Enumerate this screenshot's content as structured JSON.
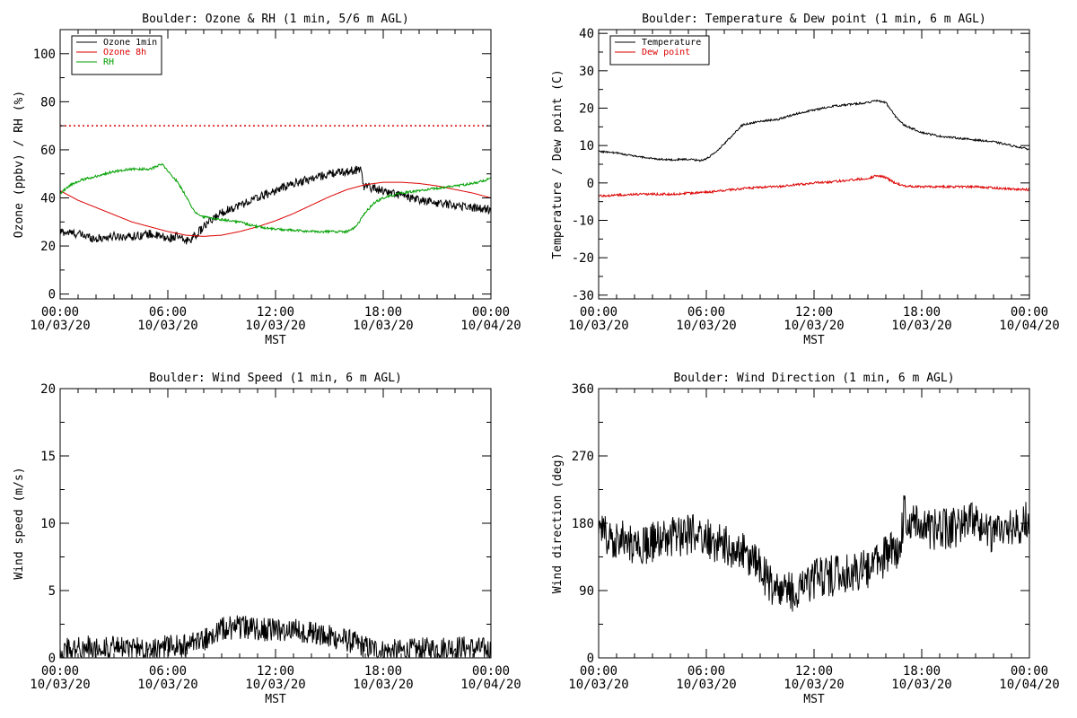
{
  "colors": {
    "black": "#000000",
    "red": "#dd0000",
    "green": "#00a000"
  },
  "x_axis": {
    "tick_times": [
      "00:00",
      "06:00",
      "12:00",
      "18:00",
      "00:00"
    ],
    "tick_dates": [
      "10/03/20",
      "10/03/20",
      "10/03/20",
      "10/03/20",
      "10/04/20"
    ],
    "xlabel": "MST",
    "range_hours": [
      0,
      24
    ]
  },
  "chart_data": [
    {
      "type": "line",
      "title": "Boulder: Ozone & RH (1 min, 5/6 m AGL)",
      "ylabel": "Ozone (ppbv) / RH (%)",
      "ylim": [
        -2,
        110
      ],
      "yticks": [
        0,
        20,
        40,
        60,
        80,
        100
      ],
      "reference_line": {
        "y": 70,
        "style": "dotted",
        "color": "#dd0000"
      },
      "legend_position": "top-left",
      "series": [
        {
          "name": "Ozone 1min",
          "color": "#000000",
          "noise": 1.8,
          "x": [
            0,
            1,
            2,
            3,
            4,
            5,
            6,
            6.5,
            7,
            7.5,
            8,
            8.5,
            9,
            10,
            11,
            12,
            13,
            14,
            15,
            16,
            16.8,
            16.9,
            17.5,
            18,
            19,
            20,
            21,
            22,
            23,
            24
          ],
          "y": [
            26,
            25,
            23,
            24,
            24,
            25,
            23,
            24,
            22,
            24,
            28,
            31,
            34,
            37,
            40,
            43,
            46,
            48,
            50,
            51,
            52,
            45,
            44,
            43,
            41,
            39,
            38,
            37,
            36,
            35
          ]
        },
        {
          "name": "Ozone 8h",
          "color": "#dd0000",
          "noise": 0,
          "x": [
            0,
            1,
            2,
            3,
            4,
            5,
            6,
            7,
            8,
            9,
            10,
            11,
            12,
            13,
            14,
            15,
            16,
            17,
            18,
            19,
            20,
            21,
            22,
            23,
            24
          ],
          "y": [
            43,
            39,
            36,
            33,
            30,
            28,
            26,
            24.5,
            24,
            24.5,
            26,
            28,
            30.5,
            33.5,
            37,
            40.5,
            43.5,
            45.5,
            46.5,
            46.5,
            46,
            45,
            43.5,
            42,
            40
          ]
        },
        {
          "name": "RH",
          "color": "#00a000",
          "noise": 0.5,
          "x": [
            0,
            0.5,
            1,
            2,
            3,
            4,
            5,
            5.7,
            6,
            6.5,
            7,
            7.5,
            8,
            9,
            10,
            11,
            12,
            13,
            14,
            15,
            16,
            16.5,
            17,
            17.5,
            18,
            19,
            20,
            21,
            22,
            23,
            24
          ],
          "y": [
            42,
            45,
            47,
            49,
            51,
            52,
            52,
            54,
            51,
            47,
            41,
            34,
            32,
            31,
            30,
            28,
            27,
            26.5,
            26,
            26,
            26,
            28,
            34,
            38,
            40,
            42,
            43,
            44,
            45,
            46,
            48
          ]
        }
      ]
    },
    {
      "type": "line",
      "title": "Boulder: Temperature & Dew point (1 min, 6 m AGL)",
      "ylabel": "Temperature / Dew point (C)",
      "ylim": [
        -31,
        41
      ],
      "yticks": [
        -30,
        -20,
        -10,
        0,
        10,
        20,
        30,
        40
      ],
      "legend_position": "top-left",
      "series": [
        {
          "name": "Temperature",
          "color": "#000000",
          "noise": 0.25,
          "x": [
            0,
            1,
            2,
            3,
            4,
            5,
            5.7,
            6,
            6.5,
            7,
            7.5,
            8,
            9,
            10,
            11,
            12,
            13,
            14,
            15,
            15.5,
            16,
            16.5,
            17,
            18,
            19,
            20,
            21,
            22,
            23,
            24
          ],
          "y": [
            8.5,
            8,
            7.2,
            6.5,
            6.2,
            6.3,
            6,
            6.5,
            8,
            10.5,
            13,
            15.5,
            16.5,
            17,
            18.5,
            19.5,
            20.5,
            21,
            21.5,
            22,
            21.5,
            18,
            15.5,
            13.5,
            12.5,
            12,
            11.5,
            11,
            10,
            9
          ]
        },
        {
          "name": "Dew point",
          "color": "#dd0000",
          "noise": 0.3,
          "x": [
            0,
            2,
            4,
            6,
            7,
            8,
            9,
            10,
            11,
            12,
            13,
            14,
            15,
            15.5,
            16,
            16.5,
            17,
            18,
            19,
            20,
            21,
            22,
            23,
            24
          ],
          "y": [
            -3.5,
            -3,
            -3,
            -2.5,
            -2,
            -1.5,
            -1.2,
            -1,
            -0.5,
            0,
            0.3,
            0.8,
            1.2,
            2,
            1.5,
            0,
            -0.8,
            -1,
            -1,
            -1,
            -1,
            -1.3,
            -1.6,
            -1.8
          ]
        }
      ]
    },
    {
      "type": "line",
      "title": "Boulder: Wind Speed (1 min, 6 m AGL)",
      "ylabel": "Wind speed (m/s)",
      "ylim": [
        0,
        20
      ],
      "yticks": [
        0,
        5,
        10,
        15,
        20
      ],
      "series": [
        {
          "name": "",
          "color": "#000000",
          "noise": 0.9,
          "x": [
            0,
            2,
            4,
            6,
            7,
            8,
            9,
            10,
            11,
            12,
            13,
            14,
            15,
            16,
            17,
            18,
            19,
            20,
            21,
            22,
            23,
            24
          ],
          "y": [
            0.6,
            0.8,
            0.7,
            0.8,
            0.9,
            1.3,
            2.2,
            2.3,
            2.2,
            2.0,
            2.1,
            1.9,
            1.6,
            1.3,
            0.8,
            0.5,
            0.5,
            0.6,
            0.7,
            0.8,
            0.7,
            0.6
          ]
        }
      ]
    },
    {
      "type": "line",
      "title": "Boulder: Wind Direction (1 min, 6 m AGL)",
      "ylabel": "Wind direction (deg)",
      "ylim": [
        0,
        360
      ],
      "yticks": [
        0,
        90,
        180,
        270,
        360
      ],
      "series": [
        {
          "name": "",
          "color": "#000000",
          "noise": 28,
          "x": [
            0,
            1,
            2,
            3,
            4,
            5,
            6,
            7,
            8,
            9,
            10,
            11,
            12,
            13,
            14,
            15,
            16,
            16.8,
            17,
            18,
            19,
            20,
            21,
            22,
            23,
            24
          ],
          "y": [
            170,
            160,
            150,
            155,
            160,
            165,
            160,
            150,
            140,
            120,
            85,
            90,
            105,
            110,
            115,
            120,
            135,
            150,
            195,
            175,
            170,
            175,
            180,
            165,
            175,
            185
          ]
        }
      ]
    }
  ]
}
